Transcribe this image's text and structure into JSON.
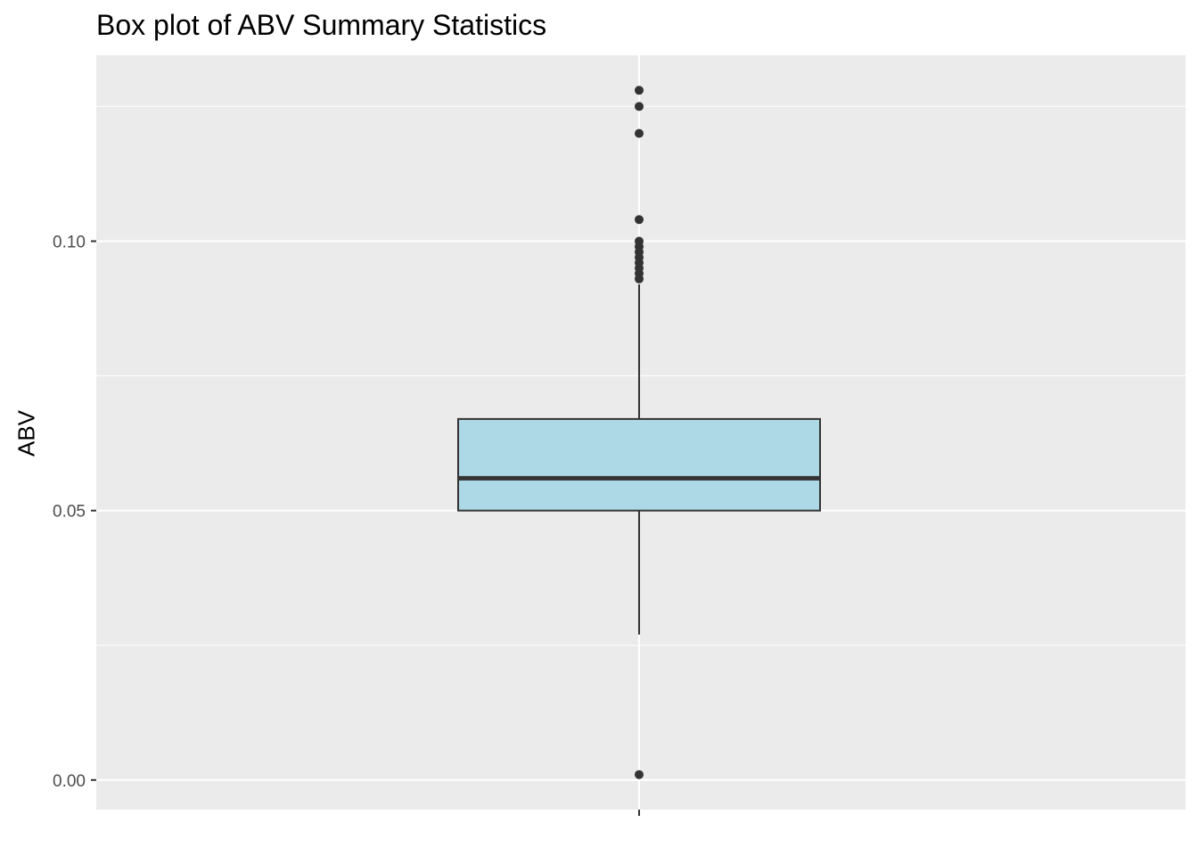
{
  "chart_data": {
    "type": "box",
    "title": "Box plot of ABV Summary Statistics",
    "xlabel": "",
    "ylabel": "ABV",
    "ylim": [
      -0.0055,
      0.1345
    ],
    "y_ticks": [
      0.0,
      0.05,
      0.1
    ],
    "y_tick_labels": [
      "0.00",
      "0.05",
      "0.10"
    ],
    "grid": true,
    "fill_color": "#add8e6",
    "panel_color": "#ebebeb",
    "box": {
      "min_whisker": 0.027,
      "q1": 0.05,
      "median": 0.056,
      "q3": 0.067,
      "max_whisker": 0.092
    },
    "outliers": [
      0.001,
      0.093,
      0.094,
      0.095,
      0.096,
      0.097,
      0.098,
      0.099,
      0.1,
      0.104,
      0.12,
      0.125,
      0.128
    ]
  }
}
